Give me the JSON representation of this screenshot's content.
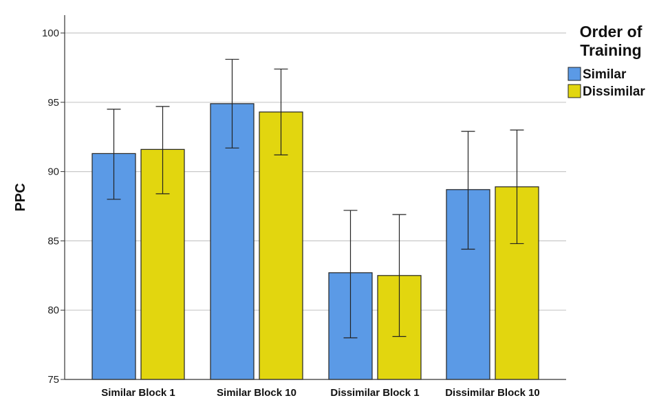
{
  "chart_data": {
    "type": "bar",
    "title": "",
    "xlabel": "",
    "ylabel": "PPC",
    "ylim": [
      75,
      100
    ],
    "yticks": [
      75,
      80,
      85,
      90,
      95,
      100
    ],
    "grid": true,
    "categories": [
      "Similar Block 1",
      "Similar Block 10",
      "Dissimilar Block 1",
      "Dissimilar Block 10"
    ],
    "legend_title_lines": [
      "Order of",
      "Training"
    ],
    "legend_position": "top-right",
    "series": [
      {
        "name": "Similar",
        "color": "#5b9ae6",
        "values": [
          91.3,
          94.9,
          82.7,
          88.7
        ],
        "error_low": [
          88.0,
          91.7,
          78.0,
          84.4
        ],
        "error_high": [
          94.5,
          98.1,
          87.2,
          92.9
        ]
      },
      {
        "name": "Dissimilar",
        "color": "#e2d60f",
        "values": [
          91.6,
          94.3,
          82.5,
          88.9
        ],
        "error_low": [
          88.4,
          91.2,
          78.1,
          84.8
        ],
        "error_high": [
          94.7,
          97.4,
          86.9,
          93.0
        ]
      }
    ]
  }
}
